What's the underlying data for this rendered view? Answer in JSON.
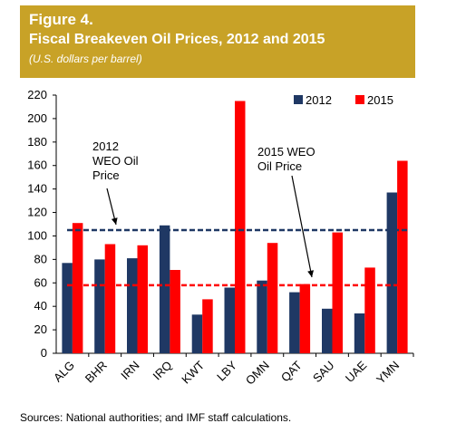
{
  "header": {
    "figure_label": "Figure 4.",
    "title": "Fiscal Breakeven Oil Prices, 2012 and 2015",
    "subtitle": "(U.S. dollars per barrel)"
  },
  "footer": {
    "source": "Sources: National authorities; and IMF staff calculations."
  },
  "chart_data": {
    "type": "bar",
    "title": "Fiscal Breakeven Oil Prices, 2012 and 2015",
    "subtitle": "(U.S. dollars per barrel)",
    "xlabel": "",
    "ylabel": "",
    "ylim": [
      0,
      220
    ],
    "yticks": [
      0,
      20,
      40,
      60,
      80,
      100,
      120,
      140,
      160,
      180,
      200,
      220
    ],
    "grid": false,
    "legend_position": "top-right",
    "categories": [
      "ALG",
      "BHR",
      "IRN",
      "IRQ",
      "KWT",
      "LBY",
      "OMN",
      "QAT",
      "SAU",
      "UAE",
      "YMN"
    ],
    "series": [
      {
        "name": "2012",
        "color": "#1f3864",
        "values": [
          77,
          80,
          81,
          109,
          33,
          56,
          62,
          52,
          38,
          34,
          137
        ]
      },
      {
        "name": "2015",
        "color": "#ff0000",
        "values": [
          111,
          93,
          92,
          71,
          46,
          215,
          94,
          59,
          103,
          73,
          164
        ]
      }
    ],
    "reference_lines": [
      {
        "label": "2012 WEO Oil Price",
        "label_lines": [
          "2012",
          "WEO Oil",
          "Price"
        ],
        "value": 105.0,
        "color": "#1f3864",
        "style": "dashed"
      },
      {
        "label": "2015 WEO Oil Price",
        "label_lines": [
          "2015 WEO",
          "Oil Price"
        ],
        "value": 58.0,
        "color": "#ff0000",
        "style": "dashed"
      }
    ]
  }
}
